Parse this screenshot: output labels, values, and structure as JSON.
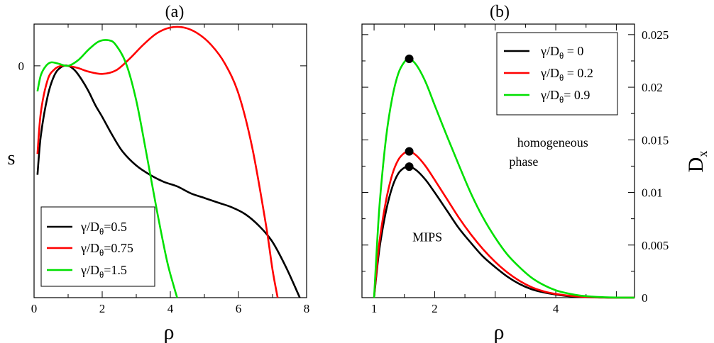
{
  "chart_data": [
    {
      "panel": "a",
      "type": "line",
      "title": "(a)",
      "xlabel": "ρ",
      "ylabel": "s",
      "xlim": [
        0,
        8
      ],
      "ylim": [
        -1.0,
        0.18
      ],
      "xticks": [
        0,
        2,
        4,
        6,
        8
      ],
      "xtick_labels": [
        "0",
        "2",
        "4",
        "6",
        "8"
      ],
      "yticks": [
        0
      ],
      "ytick_labels": [
        "0"
      ],
      "legend_position": "bottom-left",
      "series": [
        {
          "name": "black",
          "color": "#000000",
          "legend_prefix": "γ/D",
          "legend_sub": "θ",
          "legend_suffix": "=0.5",
          "x": [
            0.1,
            0.2,
            0.4,
            0.6,
            0.8,
            1.0,
            1.2,
            1.4,
            1.6,
            1.8,
            2.0,
            2.3,
            2.6,
            3.0,
            3.4,
            3.8,
            4.2,
            4.6,
            5.0,
            5.4,
            5.8,
            6.2,
            6.6,
            7.0,
            7.4,
            7.8
          ],
          "y": [
            -0.47,
            -0.3,
            -0.13,
            -0.04,
            -0.005,
            0.0,
            -0.02,
            -0.06,
            -0.11,
            -0.17,
            -0.22,
            -0.3,
            -0.37,
            -0.43,
            -0.47,
            -0.5,
            -0.52,
            -0.55,
            -0.57,
            -0.59,
            -0.61,
            -0.64,
            -0.69,
            -0.76,
            -0.87,
            -1.0
          ]
        },
        {
          "name": "red",
          "color": "#ff0000",
          "legend_prefix": "γ/D",
          "legend_sub": "θ",
          "legend_suffix": "=0.75",
          "x": [
            0.1,
            0.2,
            0.4,
            0.6,
            0.8,
            1.0,
            1.3,
            1.6,
            2.0,
            2.4,
            2.8,
            3.2,
            3.6,
            4.0,
            4.4,
            4.8,
            5.2,
            5.6,
            6.0,
            6.4,
            6.8,
            7.0,
            7.15
          ],
          "y": [
            -0.38,
            -0.2,
            -0.06,
            -0.015,
            0.0,
            0.0,
            -0.01,
            -0.025,
            -0.035,
            -0.02,
            0.03,
            0.09,
            0.14,
            0.165,
            0.165,
            0.14,
            0.09,
            0.01,
            -0.12,
            -0.35,
            -0.68,
            -0.88,
            -1.0
          ]
        },
        {
          "name": "green",
          "color": "#00e000",
          "legend_prefix": "γ/D",
          "legend_sub": "θ",
          "legend_suffix": "=1.5",
          "x": [
            0.1,
            0.2,
            0.35,
            0.5,
            0.7,
            1.0,
            1.3,
            1.6,
            1.9,
            2.2,
            2.4,
            2.7,
            3.0,
            3.3,
            3.6,
            3.9,
            4.1,
            4.2
          ],
          "y": [
            -0.11,
            -0.04,
            0.0,
            0.015,
            0.01,
            0.0,
            0.025,
            0.07,
            0.105,
            0.11,
            0.09,
            0.01,
            -0.15,
            -0.38,
            -0.62,
            -0.84,
            -0.95,
            -1.0
          ]
        }
      ]
    },
    {
      "panel": "b",
      "type": "line",
      "title": "(b)",
      "xlabel": "ρ",
      "ylabel": "D",
      "ylabel_sub": "x",
      "xlim": [
        0.8,
        5.3
      ],
      "ylim": [
        0,
        0.026
      ],
      "xticks": [
        1,
        2,
        3,
        4,
        5
      ],
      "xtick_labels": [
        "1",
        "2",
        "",
        "4",
        ""
      ],
      "yticks": [
        0,
        0.005,
        0.01,
        0.015,
        0.02,
        0.025
      ],
      "ytick_labels": [
        "0",
        "0.005",
        "0.01",
        "0.015",
        "0.02",
        "0.025"
      ],
      "y_axis_side": "right",
      "legend_position": "top-right",
      "annotations": [
        {
          "text": "homogeneous",
          "x": 3.95,
          "y": 0.01435
        },
        {
          "text": "phase",
          "x": 3.47,
          "y": 0.01252
        },
        {
          "text": "MIPS",
          "x": 1.88,
          "y": 0.00535
        }
      ],
      "series": [
        {
          "name": "black",
          "color": "#000000",
          "legend_prefix": "γ/D",
          "legend_sub": "θ",
          "legend_suffix": " = 0",
          "peak": [
            1.58,
            0.01245
          ],
          "x": [
            1.0,
            1.05,
            1.1,
            1.2,
            1.3,
            1.4,
            1.5,
            1.58,
            1.7,
            1.85,
            2.0,
            2.2,
            2.4,
            2.6,
            2.8,
            3.0,
            3.2,
            3.4,
            3.6,
            3.8,
            4.0,
            4.2,
            4.4,
            4.6,
            4.8,
            5.0,
            5.3
          ],
          "y": [
            0,
            0.0028,
            0.0051,
            0.0083,
            0.0105,
            0.0118,
            0.01235,
            0.01245,
            0.0121,
            0.0112,
            0.01,
            0.0083,
            0.0066,
            0.0052,
            0.0039,
            0.0029,
            0.002,
            0.0013,
            0.0008,
            0.0005,
            0.0003,
            0.00015,
            8e-05,
            3e-05,
            1e-05,
            0,
            0
          ]
        },
        {
          "name": "red",
          "color": "#ff0000",
          "legend_prefix": "γ/D",
          "legend_sub": "θ",
          "legend_suffix": " = 0.2",
          "peak": [
            1.58,
            0.0139
          ],
          "x": [
            1.0,
            1.05,
            1.1,
            1.2,
            1.3,
            1.4,
            1.5,
            1.58,
            1.7,
            1.85,
            2.0,
            2.2,
            2.4,
            2.6,
            2.8,
            3.0,
            3.2,
            3.4,
            3.6,
            3.8,
            4.0,
            4.2,
            4.4,
            4.6,
            4.8,
            5.0,
            5.3
          ],
          "y": [
            0,
            0.0032,
            0.0058,
            0.0093,
            0.0117,
            0.0131,
            0.01375,
            0.0139,
            0.0135,
            0.0125,
            0.0112,
            0.0094,
            0.0076,
            0.006,
            0.0046,
            0.0034,
            0.0024,
            0.0016,
            0.001,
            0.0006,
            0.00035,
            0.0002,
            0.0001,
            4e-05,
            1e-05,
            0,
            0
          ]
        },
        {
          "name": "green",
          "color": "#00e000",
          "legend_prefix": "γ/D",
          "legend_sub": "θ",
          "legend_suffix": "= 0.9",
          "peak": [
            1.58,
            0.0227
          ],
          "x": [
            1.0,
            1.05,
            1.1,
            1.2,
            1.3,
            1.4,
            1.5,
            1.58,
            1.7,
            1.85,
            2.0,
            2.2,
            2.4,
            2.6,
            2.8,
            3.0,
            3.2,
            3.4,
            3.6,
            3.8,
            4.0,
            4.2,
            4.4,
            4.6,
            4.8,
            5.0,
            5.3
          ],
          "y": [
            0,
            0.0052,
            0.0095,
            0.0153,
            0.019,
            0.0213,
            0.0224,
            0.0227,
            0.0221,
            0.0205,
            0.0183,
            0.0154,
            0.0126,
            0.0099,
            0.0076,
            0.0057,
            0.0041,
            0.0029,
            0.0019,
            0.0012,
            0.0007,
            0.0004,
            0.0002,
            0.0001,
            4e-05,
            1e-05,
            0
          ]
        }
      ]
    }
  ]
}
